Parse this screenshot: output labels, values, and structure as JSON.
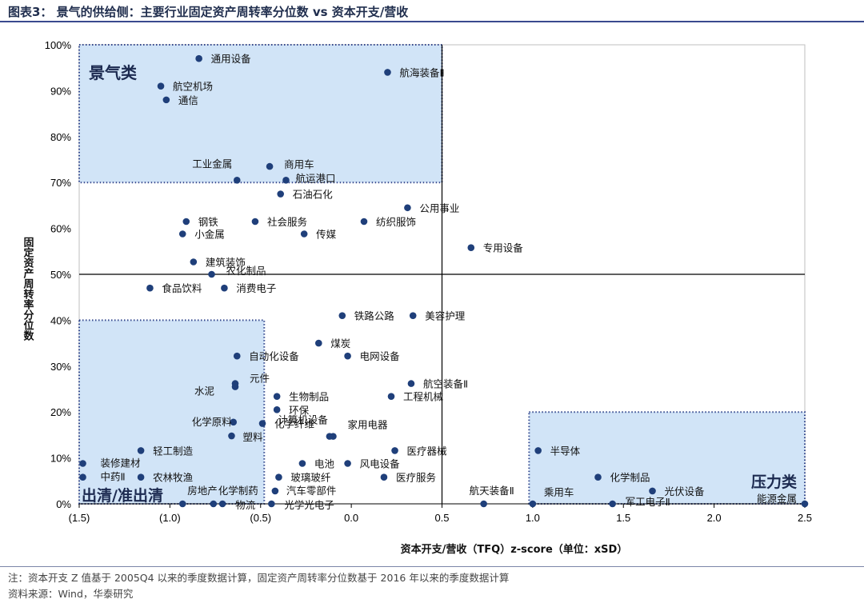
{
  "header": {
    "title": "图表3：  景气的供给侧：主要行业固定资产周转率分位数 vs 资本开支/营收"
  },
  "footer": {
    "note": "注：资本开支 Z 值基于 2005Q4 以来的季度数据计算，固定资产周转率分位数基于 2016 年以来的季度数据计算",
    "source": "资料来源：Wind，华泰研究"
  },
  "colors": {
    "point": "#1f3f7a",
    "zone_fill": "#cfe3f7",
    "zone_border": "#2a3f88"
  },
  "chart_data": {
    "type": "scatter",
    "xlabel": "资本开支/营收（TFQ）z-score（单位：xSD）",
    "ylabel": "固定资产周转率分位数",
    "xlim": [
      -1.5,
      2.5
    ],
    "ylim": [
      0,
      1.0
    ],
    "x_ticks": [
      {
        "v": -1.5,
        "label": "(1.5)"
      },
      {
        "v": -1.0,
        "label": "(1.0)"
      },
      {
        "v": -0.5,
        "label": "(0.5)"
      },
      {
        "v": 0.0,
        "label": "0.0"
      },
      {
        "v": 0.5,
        "label": "0.5"
      },
      {
        "v": 1.0,
        "label": "1.0"
      },
      {
        "v": 1.5,
        "label": "1.5"
      },
      {
        "v": 2.0,
        "label": "2.0"
      },
      {
        "v": 2.5,
        "label": "2.5"
      }
    ],
    "y_ticks": [
      {
        "v": 0.0,
        "label": "0%"
      },
      {
        "v": 0.1,
        "label": "10%"
      },
      {
        "v": 0.2,
        "label": "20%"
      },
      {
        "v": 0.3,
        "label": "30%"
      },
      {
        "v": 0.4,
        "label": "40%"
      },
      {
        "v": 0.5,
        "label": "50%"
      },
      {
        "v": 0.6,
        "label": "60%"
      },
      {
        "v": 0.7,
        "label": "70%"
      },
      {
        "v": 0.8,
        "label": "80%"
      },
      {
        "v": 0.9,
        "label": "90%"
      },
      {
        "v": 1.0,
        "label": "100%"
      }
    ],
    "zones": [
      {
        "name": "景气类",
        "x0": -1.5,
        "x1": 0.5,
        "y0": 0.7,
        "y1": 1.0
      },
      {
        "name": "出清/准出清",
        "x0": -1.5,
        "x1": -0.48,
        "y0": 0.0,
        "y1": 0.4
      },
      {
        "name": "压力类",
        "x0": 0.98,
        "x1": 2.5,
        "y0": 0.0,
        "y1": 0.2
      }
    ],
    "points": [
      {
        "name": "通用设备",
        "x": -0.84,
        "y": 0.97
      },
      {
        "name": "航海装备Ⅱ",
        "x": 0.2,
        "y": 0.94
      },
      {
        "name": "航空机场",
        "x": -1.05,
        "y": 0.91
      },
      {
        "name": "通信",
        "x": -1.02,
        "y": 0.88
      },
      {
        "name": "工业金属",
        "x": -0.63,
        "y": 0.705
      },
      {
        "name": "商用车",
        "x": -0.45,
        "y": 0.735
      },
      {
        "name": "航运港口",
        "x": -0.36,
        "y": 0.705
      },
      {
        "name": "石油石化",
        "x": -0.39,
        "y": 0.675
      },
      {
        "name": "公用事业",
        "x": 0.31,
        "y": 0.645
      },
      {
        "name": "钢铁",
        "x": -0.91,
        "y": 0.615
      },
      {
        "name": "社会服务",
        "x": -0.53,
        "y": 0.615
      },
      {
        "name": "纺织服饰",
        "x": 0.07,
        "y": 0.615
      },
      {
        "name": "小金属",
        "x": -0.93,
        "y": 0.588
      },
      {
        "name": "传媒",
        "x": -0.26,
        "y": 0.588
      },
      {
        "name": "专用设备",
        "x": 0.66,
        "y": 0.558
      },
      {
        "name": "建筑装饰",
        "x": -0.87,
        "y": 0.527
      },
      {
        "name": "农化制品",
        "x": -0.77,
        "y": 0.5
      },
      {
        "name": "食品饮料",
        "x": -1.11,
        "y": 0.47
      },
      {
        "name": "消费电子",
        "x": -0.7,
        "y": 0.47
      },
      {
        "name": "铁路公路",
        "x": -0.05,
        "y": 0.41
      },
      {
        "name": "美容护理",
        "x": 0.34,
        "y": 0.41
      },
      {
        "name": "煤炭",
        "x": -0.18,
        "y": 0.35
      },
      {
        "name": "自动化设备",
        "x": -0.63,
        "y": 0.322
      },
      {
        "name": "电网设备",
        "x": -0.02,
        "y": 0.322
      },
      {
        "name": "航空装备Ⅱ",
        "x": 0.33,
        "y": 0.262
      },
      {
        "name": "元件",
        "x": -0.64,
        "y": 0.262
      },
      {
        "name": "水泥",
        "x": -0.64,
        "y": 0.255
      },
      {
        "name": "生物制品",
        "x": -0.41,
        "y": 0.234
      },
      {
        "name": "工程机械",
        "x": 0.22,
        "y": 0.234
      },
      {
        "name": "环保",
        "x": -0.41,
        "y": 0.205
      },
      {
        "name": "化学原料",
        "x": -0.65,
        "y": 0.178
      },
      {
        "name": "化学纤维",
        "x": -0.49,
        "y": 0.175
      },
      {
        "name": "塑料",
        "x": -0.66,
        "y": 0.148
      },
      {
        "name": "家用电器",
        "x": -0.1,
        "y": 0.147
      },
      {
        "name": "轻工制造",
        "x": -1.16,
        "y": 0.116
      },
      {
        "name": "计算机设备",
        "x": -0.12,
        "y": 0.147
      },
      {
        "name": "医疗器械",
        "x": 0.24,
        "y": 0.116
      },
      {
        "name": "半导体",
        "x": 1.03,
        "y": 0.116
      },
      {
        "name": "装修建材",
        "x": -1.48,
        "y": 0.088
      },
      {
        "name": "电池",
        "x": -0.27,
        "y": 0.088
      },
      {
        "name": "风电设备",
        "x": -0.02,
        "y": 0.088
      },
      {
        "name": "中药Ⅱ",
        "x": -1.48,
        "y": 0.058
      },
      {
        "name": "农林牧渔",
        "x": -1.16,
        "y": 0.058
      },
      {
        "name": "玻璃玻纤",
        "x": -0.4,
        "y": 0.058
      },
      {
        "name": "医疗服务",
        "x": 0.18,
        "y": 0.058
      },
      {
        "name": "化学制品",
        "x": 1.36,
        "y": 0.058
      },
      {
        "name": "光伏设备",
        "x": 1.66,
        "y": 0.028
      },
      {
        "name": "房地产",
        "x": -0.93,
        "y": 0.0
      },
      {
        "name": "化学制药",
        "x": -0.76,
        "y": 0.0
      },
      {
        "name": "汽车零部件",
        "x": -0.42,
        "y": 0.028
      },
      {
        "name": "物流",
        "x": -0.71,
        "y": 0.0
      },
      {
        "name": "光学光电子",
        "x": -0.44,
        "y": 0.0
      },
      {
        "name": "航天装备Ⅱ",
        "x": 0.73,
        "y": 0.0
      },
      {
        "name": "乘用车",
        "x": 1.0,
        "y": 0.0
      },
      {
        "name": "军工电子Ⅱ",
        "x": 1.44,
        "y": 0.0
      },
      {
        "name": "能源金属",
        "x": 2.5,
        "y": 0.0
      }
    ]
  }
}
